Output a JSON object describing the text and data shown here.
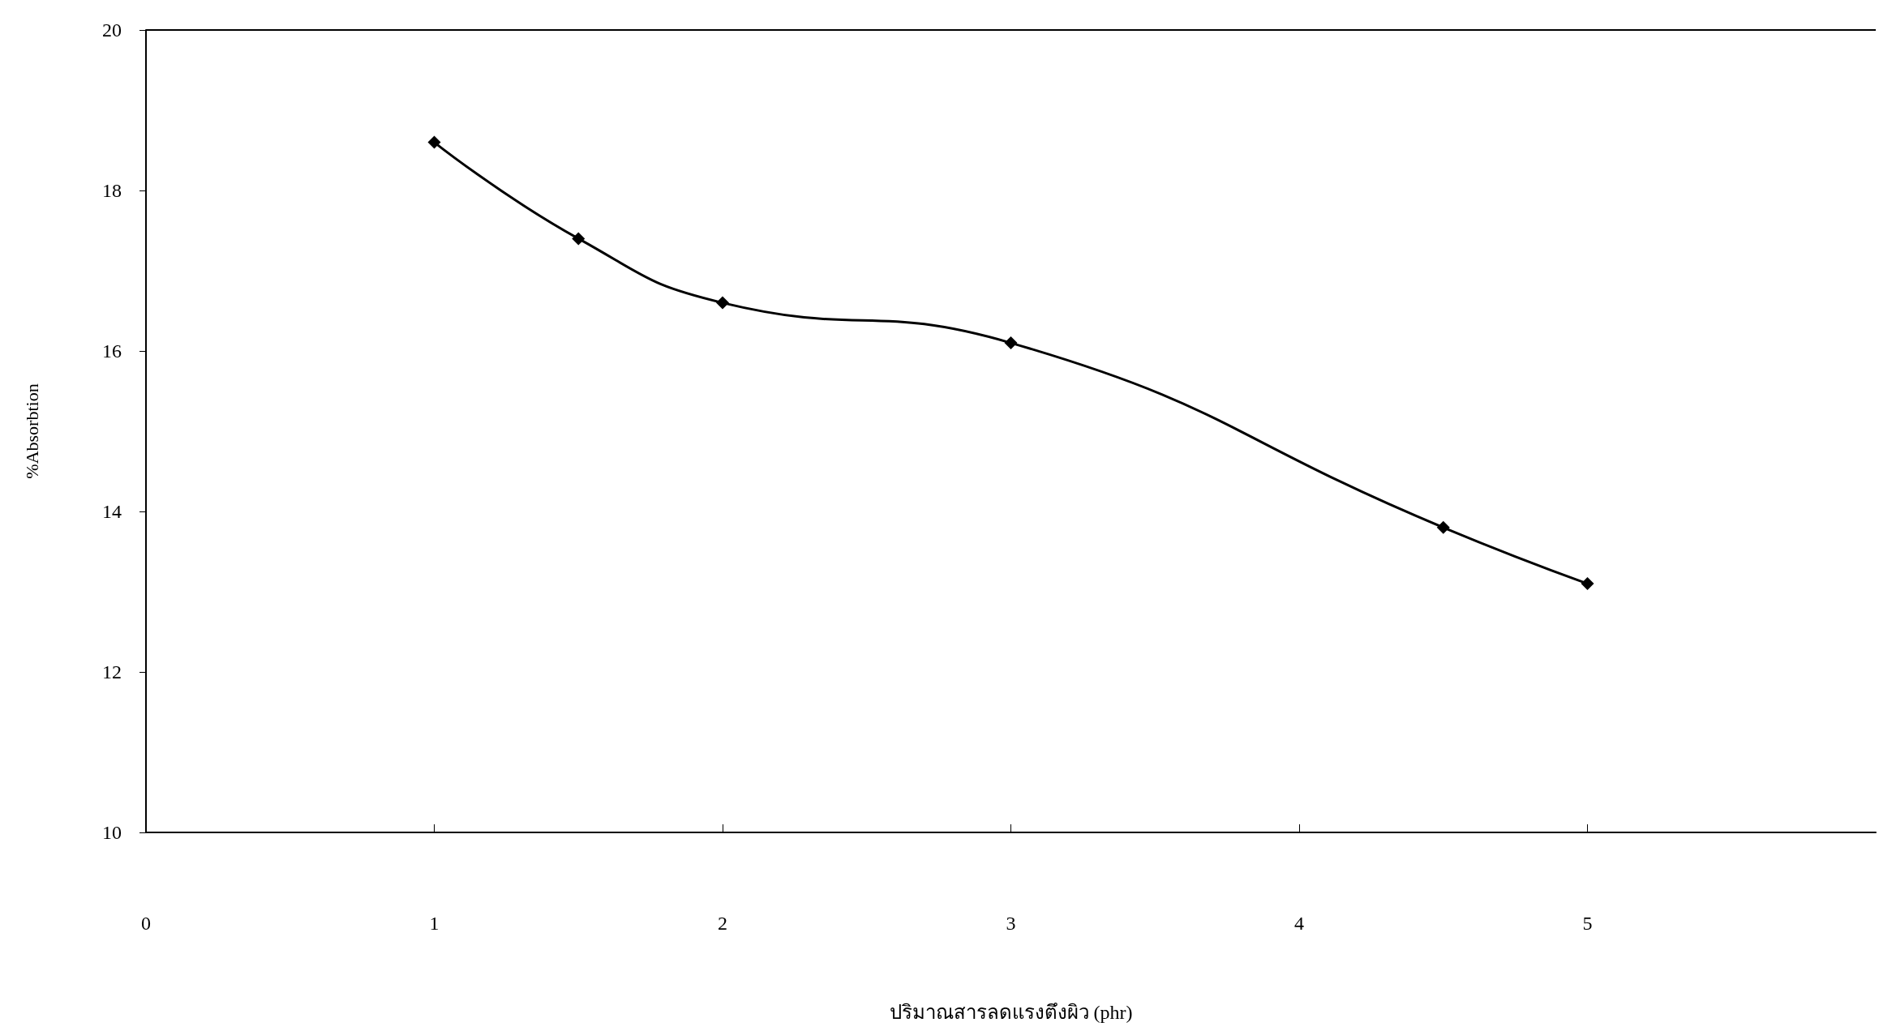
{
  "chart_data": {
    "type": "line",
    "xlabel": "ปริมาณสารลดแรงตึงผิว (phr)",
    "ylabel": "%Absorbtion",
    "series": [
      {
        "color": "#000000",
        "x": [
          1,
          1.5,
          2,
          3,
          4.5,
          5
        ],
        "values": [
          18.6,
          17.4,
          16.6,
          16.1,
          13.8,
          13.1
        ]
      }
    ],
    "xlim": [
      0,
      6
    ],
    "xticks": [
      0,
      1,
      2,
      3,
      4,
      5
    ],
    "ylim": [
      10,
      20
    ],
    "yticks": [
      10,
      12,
      14,
      16,
      18,
      20
    ],
    "grid": false,
    "marker": "diamond",
    "line_style": "solid"
  }
}
